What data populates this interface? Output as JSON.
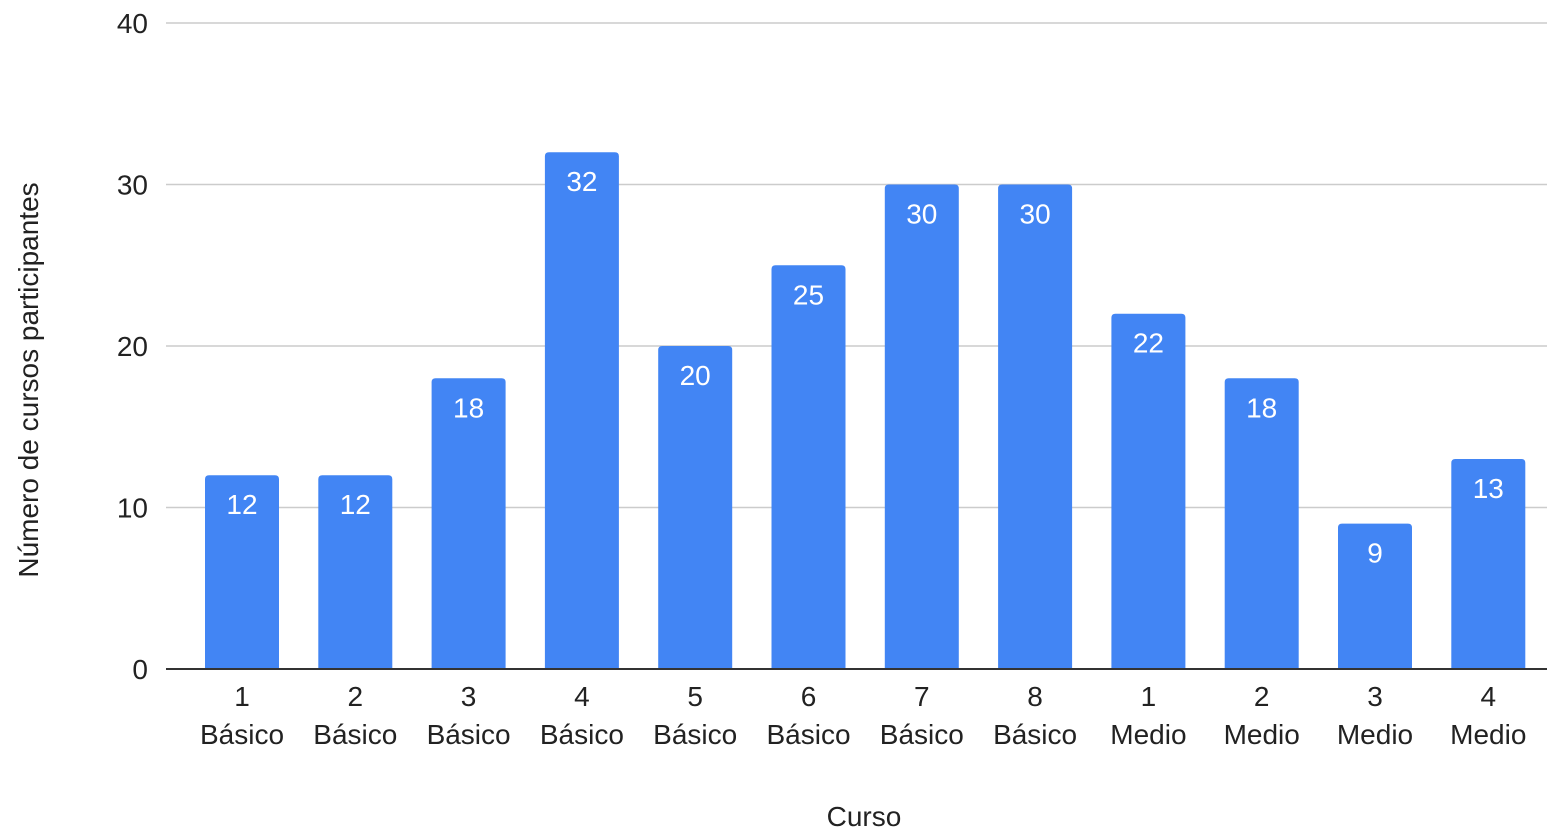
{
  "chart_data": {
    "type": "bar",
    "title": "",
    "xlabel": "Curso",
    "ylabel": "Número de cursos participantes",
    "ylim": [
      0,
      40
    ],
    "yticks": [
      0,
      10,
      20,
      30,
      40
    ],
    "grid": true,
    "legend": "none",
    "categories": [
      [
        "1",
        "Básico"
      ],
      [
        "2",
        "Básico"
      ],
      [
        "3",
        "Básico"
      ],
      [
        "4",
        "Básico"
      ],
      [
        "5",
        "Básico"
      ],
      [
        "6",
        "Básico"
      ],
      [
        "7",
        "Básico"
      ],
      [
        "8",
        "Básico"
      ],
      [
        "1",
        "Medio"
      ],
      [
        "2",
        "Medio"
      ],
      [
        "3",
        "Medio"
      ],
      [
        "4",
        "Medio"
      ]
    ],
    "values": [
      12,
      12,
      18,
      32,
      20,
      25,
      30,
      30,
      22,
      18,
      9,
      13
    ],
    "data_labels": true,
    "colors": {
      "bar": "#4285F4",
      "grid": "#cccccc",
      "baseline": "#333333",
      "text": "#222222",
      "bar_label": "#ffffff"
    }
  }
}
